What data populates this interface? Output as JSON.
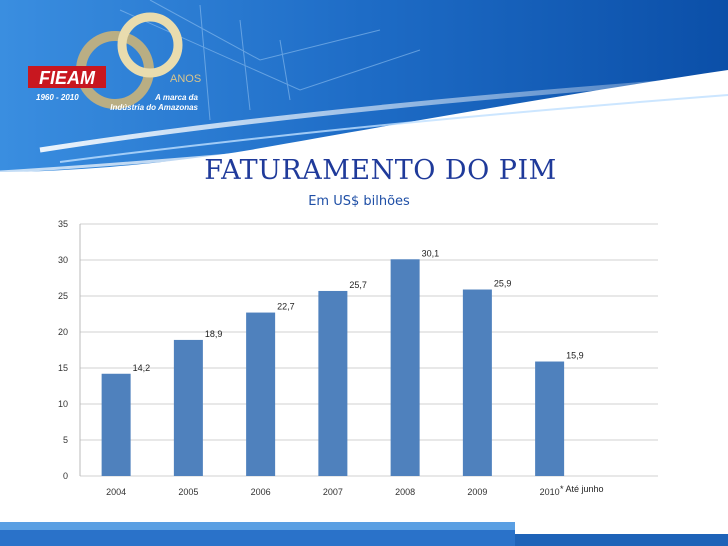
{
  "slide": {
    "title": "FATURAMENTO DO PIM"
  },
  "logo": {
    "brand": "FIEAM",
    "years": "1960 - 2010",
    "anos": "ANOS",
    "tagline_1": "A marca da",
    "tagline_2": "Indústria do Amazonas"
  },
  "colors": {
    "bar": "#4f81bd",
    "banner_blue": "#2470c8",
    "title_blue": "#1f3a9a",
    "grid": "#d0d0d0"
  },
  "chart_data": {
    "type": "bar",
    "title": "Em US$ bilhões",
    "categories": [
      "2004",
      "2005",
      "2006",
      "2007",
      "2008",
      "2009",
      "2010"
    ],
    "values": [
      14.2,
      18.9,
      22.7,
      25.7,
      30.1,
      25.9,
      15.9
    ],
    "value_labels": [
      "14,2",
      "18,9",
      "22,7",
      "25,7",
      "30,1",
      "25,9",
      "15,9"
    ],
    "ylim": [
      0,
      35
    ],
    "yticks": [
      0,
      5,
      10,
      15,
      20,
      25,
      30,
      35
    ],
    "grid": true,
    "legend": "none",
    "annotation": "* Até junho"
  }
}
